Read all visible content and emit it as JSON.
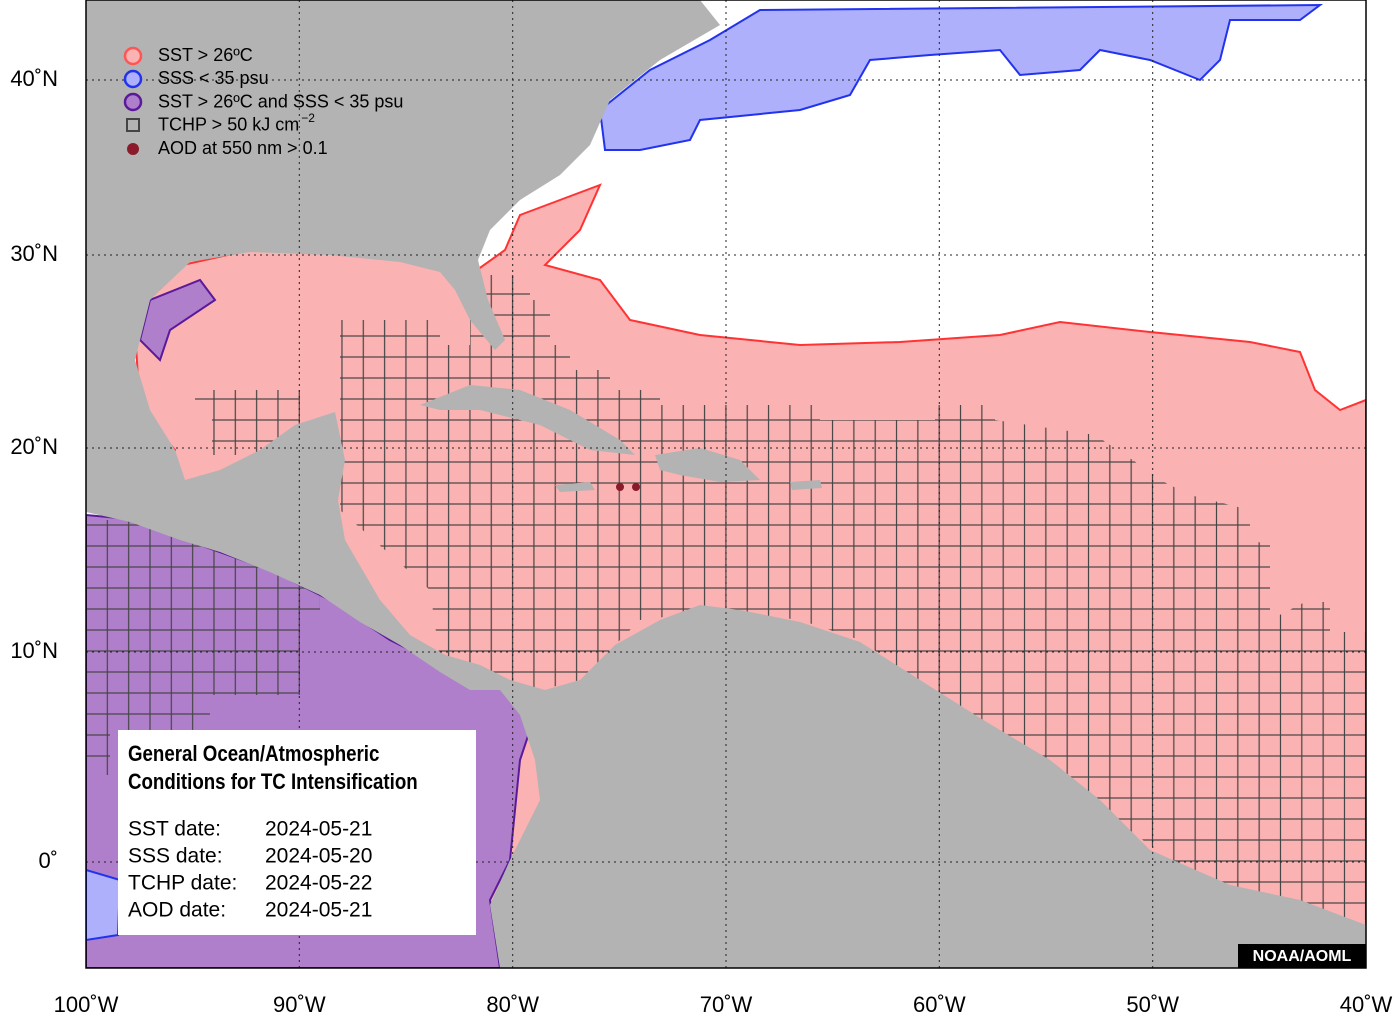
{
  "map": {
    "legend": [
      {
        "text": "SST > 26ºC"
      },
      {
        "text": "SSS < 35 psu"
      },
      {
        "text": "SST > 26ºC and SSS < 35 psu"
      },
      {
        "text": "TCHP > 50 kJ cm",
        "superscript": "−2"
      },
      {
        "text": "AOD at 550 nm > 0.1"
      }
    ],
    "lon_labels": [
      "100˚W",
      "90˚W",
      "80˚W",
      "70˚W",
      "60˚W",
      "50˚W",
      "40˚W"
    ],
    "lat_labels": [
      "40˚N",
      "30˚N",
      "20˚N",
      "10˚N",
      "0˚"
    ],
    "info_box": {
      "title": [
        "General Ocean/Atmospheric",
        "Conditions for TC Intensification"
      ],
      "dates": [
        {
          "label": "SST date:",
          "value": "2024-05-21"
        },
        {
          "label": "SSS date:",
          "value": "2024-05-20"
        },
        {
          "label": "TCHP date:",
          "value": "2024-05-22"
        },
        {
          "label": "AOD date:",
          "value": "2024-05-21"
        }
      ]
    },
    "credit": "NOAA/AOML"
  }
}
